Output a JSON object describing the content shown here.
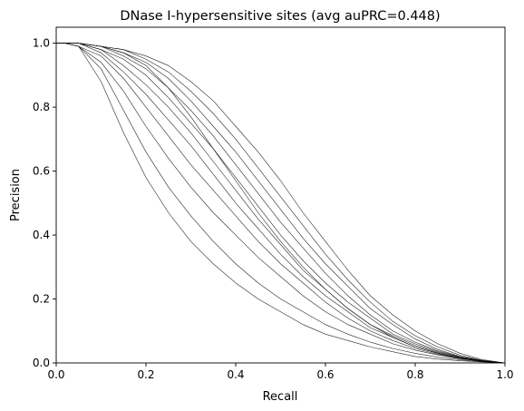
{
  "chart_data": {
    "type": "line",
    "title": "DNase I-hypersensitive sites (avg auPRC=0.448)",
    "xlabel": "Recall",
    "ylabel": "Precision",
    "xlim": [
      0.0,
      1.0
    ],
    "ylim": [
      0.0,
      1.05
    ],
    "xticks": [
      0.0,
      0.2,
      0.4,
      0.6,
      0.8,
      1.0
    ],
    "yticks": [
      0.0,
      0.2,
      0.4,
      0.6,
      0.8,
      1.0
    ],
    "xtick_labels": [
      "0.0",
      "0.2",
      "0.4",
      "0.6",
      "0.8",
      "1.0"
    ],
    "ytick_labels": [
      "0.0",
      "0.2",
      "0.4",
      "0.6",
      "0.8",
      "1.0"
    ],
    "grid": false,
    "legend": "none",
    "line_color": "#000000",
    "x": [
      0.0,
      0.02,
      0.05,
      0.1,
      0.15,
      0.2,
      0.25,
      0.3,
      0.35,
      0.4,
      0.45,
      0.5,
      0.55,
      0.6,
      0.65,
      0.7,
      0.75,
      0.8,
      0.85,
      0.9,
      0.95,
      1.0
    ],
    "series": [
      {
        "values": [
          1.0,
          1.0,
          0.99,
          0.88,
          0.72,
          0.58,
          0.47,
          0.38,
          0.31,
          0.25,
          0.2,
          0.16,
          0.12,
          0.09,
          0.07,
          0.05,
          0.035,
          0.02,
          0.012,
          0.007,
          0.003,
          0.0
        ]
      },
      {
        "values": [
          1.0,
          1.0,
          0.99,
          0.92,
          0.79,
          0.66,
          0.55,
          0.46,
          0.38,
          0.31,
          0.25,
          0.2,
          0.16,
          0.12,
          0.09,
          0.065,
          0.045,
          0.03,
          0.018,
          0.01,
          0.004,
          0.0
        ]
      },
      {
        "values": [
          1.0,
          1.0,
          0.99,
          0.94,
          0.85,
          0.74,
          0.64,
          0.55,
          0.47,
          0.4,
          0.33,
          0.27,
          0.21,
          0.16,
          0.12,
          0.09,
          0.06,
          0.04,
          0.025,
          0.013,
          0.005,
          0.0
        ]
      },
      {
        "values": [
          1.0,
          1.0,
          0.99,
          0.96,
          0.89,
          0.8,
          0.71,
          0.62,
          0.54,
          0.46,
          0.38,
          0.31,
          0.25,
          0.19,
          0.14,
          0.1,
          0.07,
          0.045,
          0.027,
          0.014,
          0.005,
          0.0
        ]
      },
      {
        "values": [
          1.0,
          1.0,
          1.0,
          0.97,
          0.91,
          0.84,
          0.76,
          0.68,
          0.59,
          0.5,
          0.42,
          0.34,
          0.27,
          0.21,
          0.16,
          0.11,
          0.08,
          0.05,
          0.03,
          0.015,
          0.005,
          0.0
        ]
      },
      {
        "values": [
          1.0,
          1.0,
          1.0,
          0.98,
          0.93,
          0.87,
          0.8,
          0.72,
          0.63,
          0.54,
          0.45,
          0.37,
          0.29,
          0.23,
          0.17,
          0.12,
          0.085,
          0.055,
          0.032,
          0.016,
          0.006,
          0.0
        ]
      },
      {
        "values": [
          1.0,
          1.0,
          1.0,
          0.98,
          0.95,
          0.9,
          0.83,
          0.75,
          0.67,
          0.58,
          0.49,
          0.4,
          0.32,
          0.25,
          0.19,
          0.14,
          0.09,
          0.06,
          0.035,
          0.018,
          0.006,
          0.0
        ]
      },
      {
        "values": [
          1.0,
          1.0,
          1.0,
          0.99,
          0.96,
          0.92,
          0.86,
          0.79,
          0.71,
          0.62,
          0.53,
          0.44,
          0.36,
          0.28,
          0.21,
          0.15,
          0.1,
          0.065,
          0.038,
          0.019,
          0.006,
          0.0
        ]
      },
      {
        "values": [
          1.0,
          1.0,
          1.0,
          0.99,
          0.97,
          0.94,
          0.89,
          0.82,
          0.74,
          0.66,
          0.57,
          0.48,
          0.39,
          0.31,
          0.24,
          0.17,
          0.12,
          0.075,
          0.042,
          0.02,
          0.007,
          0.0
        ]
      },
      {
        "values": [
          1.0,
          1.0,
          1.0,
          0.99,
          0.98,
          0.95,
          0.91,
          0.85,
          0.78,
          0.7,
          0.61,
          0.52,
          0.43,
          0.34,
          0.26,
          0.19,
          0.13,
          0.085,
          0.05,
          0.024,
          0.008,
          0.0
        ]
      },
      {
        "values": [
          1.0,
          1.0,
          1.0,
          0.99,
          0.98,
          0.96,
          0.93,
          0.88,
          0.82,
          0.74,
          0.66,
          0.57,
          0.47,
          0.38,
          0.29,
          0.21,
          0.15,
          0.1,
          0.06,
          0.03,
          0.01,
          0.0
        ]
      },
      {
        "values": [
          1.0,
          1.0,
          1.0,
          0.99,
          0.97,
          0.93,
          0.86,
          0.77,
          0.67,
          0.57,
          0.47,
          0.38,
          0.3,
          0.23,
          0.17,
          0.12,
          0.08,
          0.05,
          0.03,
          0.015,
          0.005,
          0.0
        ]
      }
    ]
  }
}
